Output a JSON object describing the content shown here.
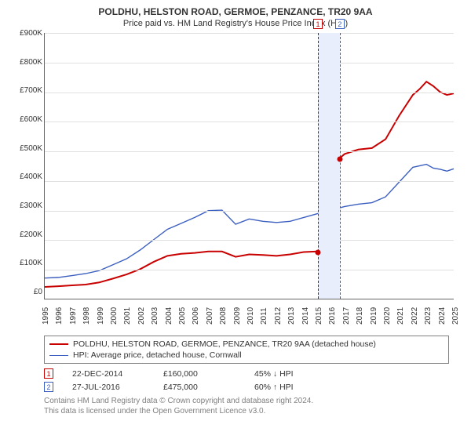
{
  "title": "POLDHU, HELSTON ROAD, GERMOE, PENZANCE, TR20 9AA",
  "subtitle": "Price paid vs. HM Land Registry's House Price Index (HPI)",
  "chart": {
    "type": "line",
    "background_color": "#ffffff",
    "grid_color": "#e0e0e0",
    "axis_color": "#666666",
    "ylabel_prefix": "£",
    "ylim": [
      0,
      900
    ],
    "ytick_labels": [
      "£0",
      "£100K",
      "£200K",
      "£300K",
      "£400K",
      "£500K",
      "£600K",
      "£700K",
      "£800K",
      "£900K"
    ],
    "xlim": [
      1995,
      2025
    ],
    "xtick_labels": [
      "1995",
      "1996",
      "1997",
      "1998",
      "1999",
      "2000",
      "2001",
      "2002",
      "2003",
      "2004",
      "2005",
      "2006",
      "2007",
      "2008",
      "2009",
      "2010",
      "2011",
      "2012",
      "2013",
      "2014",
      "2015",
      "2016",
      "2017",
      "2018",
      "2019",
      "2020",
      "2021",
      "2022",
      "2023",
      "2024",
      "2025"
    ],
    "label_fontsize": 10,
    "highlight_band": {
      "x_from_year": 2015.0,
      "x_to_year": 2016.6,
      "color": "#e8eefc"
    },
    "markers": [
      {
        "id": "1",
        "year": 2015.0,
        "color": "#c80000"
      },
      {
        "id": "2",
        "year": 2016.6,
        "color": "#3b5fc0"
      }
    ],
    "sale_points": [
      {
        "year": 2015.0,
        "value": 160,
        "color": "#c80000"
      },
      {
        "year": 2016.6,
        "value": 475,
        "color": "#c80000"
      }
    ],
    "series": [
      {
        "name": "red",
        "color": "#c80000",
        "width": 2,
        "points": [
          [
            1995,
            40
          ],
          [
            1996,
            42
          ],
          [
            1997,
            45
          ],
          [
            1998,
            48
          ],
          [
            1999,
            55
          ],
          [
            2000,
            68
          ],
          [
            2001,
            82
          ],
          [
            2002,
            100
          ],
          [
            2003,
            125
          ],
          [
            2004,
            145
          ],
          [
            2005,
            152
          ],
          [
            2006,
            155
          ],
          [
            2007,
            160
          ],
          [
            2008,
            160
          ],
          [
            2009,
            142
          ],
          [
            2010,
            150
          ],
          [
            2011,
            148
          ],
          [
            2012,
            145
          ],
          [
            2013,
            150
          ],
          [
            2014,
            158
          ],
          [
            2015,
            160
          ],
          [
            2016.55,
            162
          ],
          [
            2016.6,
            475
          ],
          [
            2017,
            490
          ],
          [
            2018,
            505
          ],
          [
            2019,
            510
          ],
          [
            2020,
            540
          ],
          [
            2021,
            620
          ],
          [
            2022,
            690
          ],
          [
            2022.5,
            710
          ],
          [
            2023,
            735
          ],
          [
            2023.5,
            720
          ],
          [
            2024,
            700
          ],
          [
            2024.5,
            690
          ],
          [
            2025,
            695
          ]
        ]
      },
      {
        "name": "blue",
        "color": "#3b5fc0",
        "width": 1.4,
        "points": [
          [
            1995,
            70
          ],
          [
            1996,
            72
          ],
          [
            1997,
            78
          ],
          [
            1998,
            85
          ],
          [
            1999,
            95
          ],
          [
            2000,
            115
          ],
          [
            2001,
            135
          ],
          [
            2002,
            165
          ],
          [
            2003,
            200
          ],
          [
            2004,
            235
          ],
          [
            2005,
            255
          ],
          [
            2006,
            275
          ],
          [
            2007,
            298
          ],
          [
            2008,
            300
          ],
          [
            2009,
            252
          ],
          [
            2010,
            270
          ],
          [
            2011,
            262
          ],
          [
            2012,
            258
          ],
          [
            2013,
            262
          ],
          [
            2014,
            275
          ],
          [
            2015,
            288
          ],
          [
            2016,
            300
          ],
          [
            2017,
            312
          ],
          [
            2018,
            320
          ],
          [
            2019,
            325
          ],
          [
            2020,
            345
          ],
          [
            2021,
            395
          ],
          [
            2022,
            445
          ],
          [
            2023,
            455
          ],
          [
            2023.5,
            442
          ],
          [
            2024,
            438
          ],
          [
            2024.5,
            432
          ],
          [
            2025,
            440
          ]
        ]
      }
    ]
  },
  "legend": {
    "border_color": "#808080",
    "rows": [
      {
        "color": "#c80000",
        "width": 2,
        "text": "POLDHU, HELSTON ROAD, GERMOE, PENZANCE, TR20 9AA (detached house)"
      },
      {
        "color": "#3b5fc0",
        "width": 1.4,
        "text": "HPI: Average price, detached house, Cornwall"
      }
    ]
  },
  "sale_table": [
    {
      "tag": "1",
      "tag_color": "#c80000",
      "date": "22-DEC-2014",
      "price": "£160,000",
      "delta": "45% ↓ HPI"
    },
    {
      "tag": "2",
      "tag_color": "#3b5fc0",
      "date": "27-JUL-2016",
      "price": "£475,000",
      "delta": "60% ↑ HPI"
    }
  ],
  "footnote_line1": "Contains HM Land Registry data © Crown copyright and database right 2024.",
  "footnote_line2": "This data is licensed under the Open Government Licence v3.0."
}
